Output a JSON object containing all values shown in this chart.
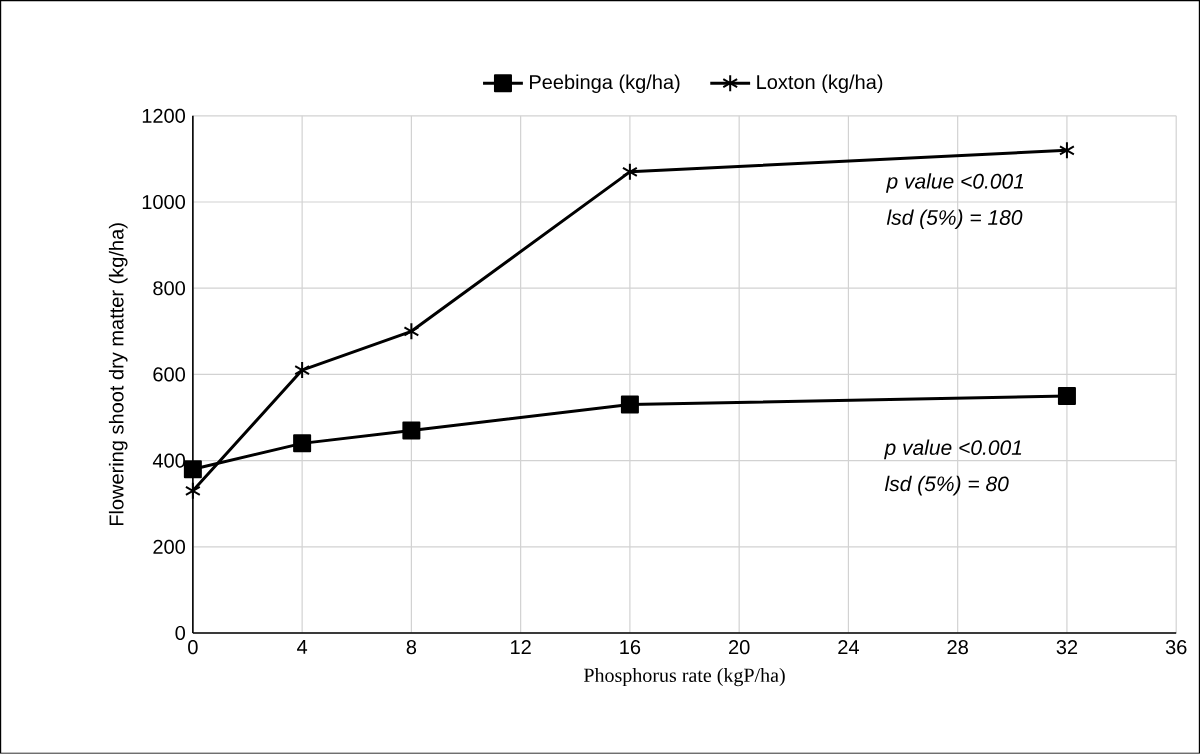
{
  "chart_data": {
    "type": "line",
    "xlabel": "Phosphorus rate (kgP/ha)",
    "ylabel": "Flowering shoot dry matter (kg/ha)",
    "x": [
      0,
      4,
      8,
      16,
      32
    ],
    "series": [
      {
        "name": "Peebinga (kg/ha)",
        "color": "#000000",
        "marker": "square",
        "values": [
          380,
          440,
          470,
          530,
          550
        ]
      },
      {
        "name": "Loxton (kg/ha)",
        "color": "#000000",
        "marker": "cross",
        "values": [
          330,
          610,
          700,
          1070,
          1120
        ]
      }
    ],
    "xlim": [
      0,
      36
    ],
    "xticks": [
      0,
      4,
      8,
      12,
      16,
      20,
      24,
      28,
      32,
      36
    ],
    "ylim": [
      0,
      1200
    ],
    "yticks": [
      0,
      200,
      400,
      600,
      800,
      1000,
      1200
    ],
    "grid": true,
    "legend": "top",
    "line_style": "solid",
    "annotations": [
      "p value <0.001",
      "lsd (5%) = 180",
      "p value <0.001",
      "lsd (5%) = 80"
    ]
  }
}
